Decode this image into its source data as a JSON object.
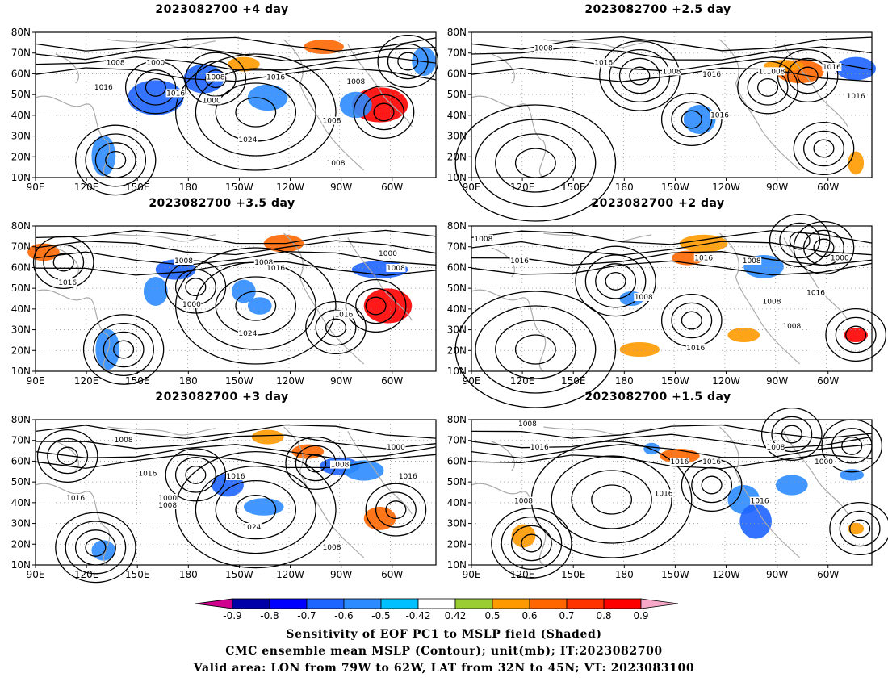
{
  "panels": [
    {
      "title": "2023082700 +4 day",
      "contour_labels": [
        "1008",
        "1000",
        "1008",
        "1016",
        "1016",
        "1000",
        "1016",
        "1008",
        "1024",
        "1008",
        "1008"
      ]
    },
    {
      "title": "2023082700 +2.5 day",
      "contour_labels": [
        "1008",
        "1016",
        "1008",
        "1016",
        "1016",
        "1008",
        "1016",
        "1008",
        "1016"
      ]
    },
    {
      "title": "2023082700 +3.5 day",
      "contour_labels": [
        "1008",
        "1016",
        "1008",
        "1016",
        "1000",
        "1024",
        "1016",
        "1000",
        "1008"
      ]
    },
    {
      "title": "2023082700 +2 day",
      "contour_labels": [
        "1008",
        "1016",
        "1016",
        "1008",
        "1000",
        "1008",
        "1016",
        "1008",
        "1016",
        "1008"
      ]
    },
    {
      "title": "2023082700 +3 day",
      "contour_labels": [
        "1008",
        "1016",
        "1016",
        "1016",
        "1000",
        "1008",
        "1024",
        "1008",
        "1000",
        "1016",
        "1008"
      ]
    },
    {
      "title": "2023082700 +1.5 day",
      "contour_labels": [
        "1008",
        "1016",
        "1008",
        "1016",
        "1016",
        "1008",
        "1000",
        "1016",
        "1016"
      ]
    }
  ],
  "axes": {
    "lat_labels": [
      "80N",
      "70N",
      "60N",
      "50N",
      "40N",
      "30N",
      "20N",
      "10N"
    ],
    "lon_labels": [
      "90E",
      "120E",
      "150E",
      "180",
      "150W",
      "120W",
      "90W",
      "60W"
    ]
  },
  "colorbar": {
    "labels": [
      "-0.9",
      "-0.8",
      "-0.7",
      "-0.6",
      "-0.5",
      "-0.42",
      "0.42",
      "0.5",
      "0.6",
      "0.7",
      "0.8",
      "0.9"
    ],
    "colors": [
      "#0000a8",
      "#0000ff",
      "#1e64ff",
      "#2c8cff",
      "#00c0ff",
      "#ffffff",
      "#9acd32",
      "#ff9900",
      "#ff6600",
      "#ff3300",
      "#ff0000"
    ],
    "low_extend_color": "#d0008f",
    "high_extend_color": "#f7a8c8"
  },
  "footer": {
    "line1": "Sensitivity of EOF PC1 to MSLP field (Shaded)",
    "line2": "CMC ensemble mean MSLP (Contour); unit(mb); IT:2023082700",
    "line3": "Valid area: LON from 79W to 62W, LAT from 32N to 45N; VT: 2023083100"
  }
}
